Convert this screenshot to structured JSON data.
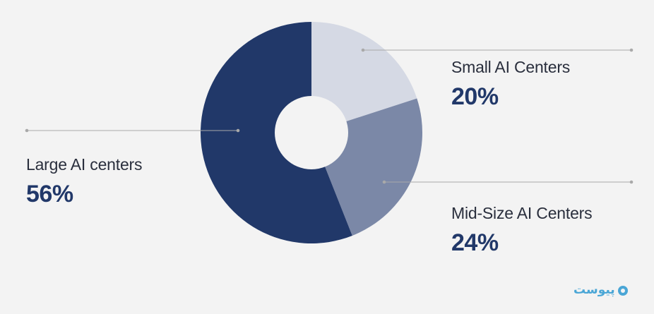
{
  "chart_data": {
    "type": "pie",
    "title": "",
    "donut": true,
    "slices": [
      {
        "label": "Small AI Centers",
        "value": 20,
        "display": "20%",
        "color": "#d5d9e4"
      },
      {
        "label": "Mid-Size AI Centers",
        "value": 24,
        "display": "24%",
        "color": "#7b88a7"
      },
      {
        "label": "Large AI centers",
        "value": 56,
        "display": "56%",
        "color": "#213869"
      }
    ],
    "legend": "callout-labels"
  },
  "colors": {
    "background": "#f3f3f3",
    "leader_line": "#a9a9a9",
    "percent_text": "#213869",
    "label_text": "#2a2f3d",
    "logo": "#4aa6d6"
  },
  "watermark": {
    "text": "پیوست",
    "icon": "circle-logo-icon"
  }
}
